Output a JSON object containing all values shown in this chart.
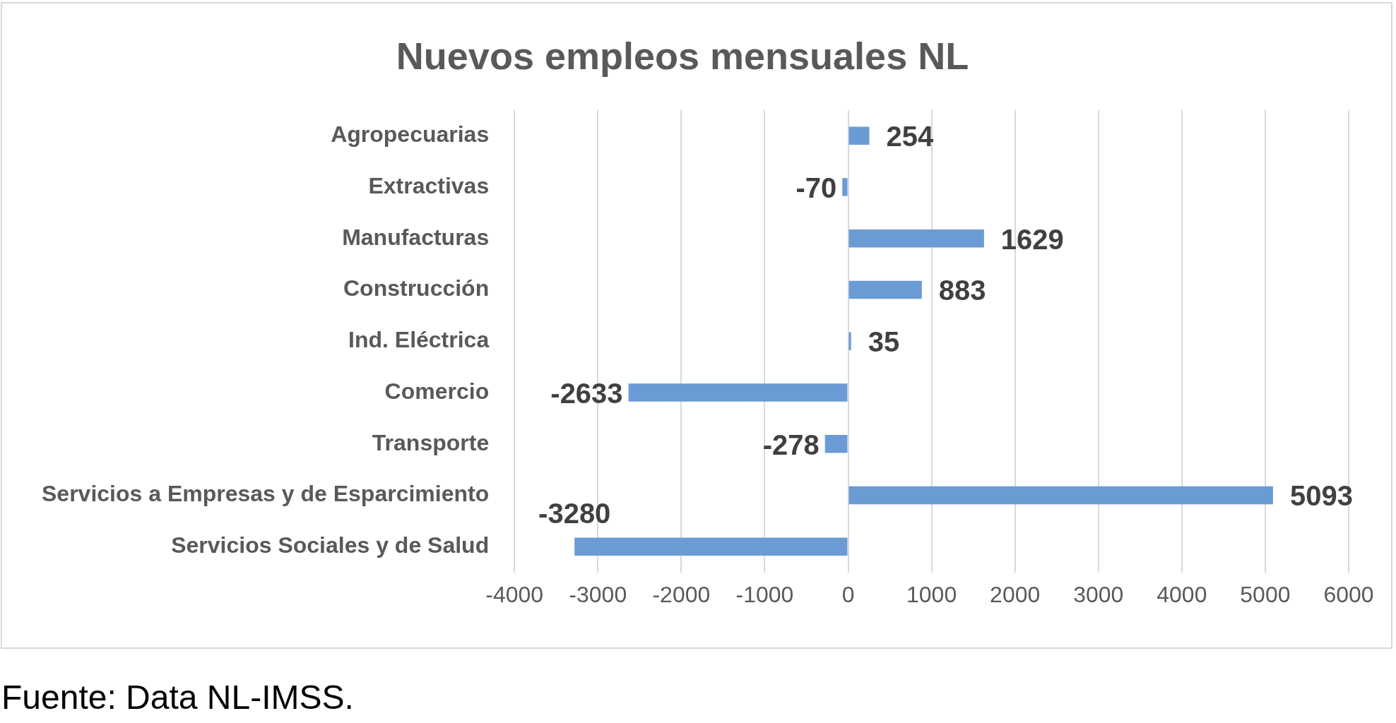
{
  "chart_data": {
    "type": "bar",
    "orientation": "horizontal",
    "title": "Nuevos empleos mensuales NL",
    "categories": [
      "Agropecuarias",
      "Extractivas",
      "Manufacturas",
      "Construcción",
      "Ind. Eléctrica",
      "Comercio",
      "Transporte",
      "Servicios a Empresas y de Esparcimiento",
      "Servicios Sociales y de Salud"
    ],
    "values": [
      254,
      -70,
      1629,
      883,
      35,
      -2633,
      -278,
      5093,
      -3280
    ],
    "color": "#6a9bd4",
    "xlim": [
      -4000,
      6000
    ],
    "xticks": [
      -4000,
      -3000,
      -2000,
      -1000,
      0,
      1000,
      2000,
      3000,
      4000,
      5000,
      6000
    ],
    "grid": "x",
    "legend": false,
    "data_labels": true,
    "annotations": [
      "Fuente: Data NL-IMSS."
    ]
  }
}
